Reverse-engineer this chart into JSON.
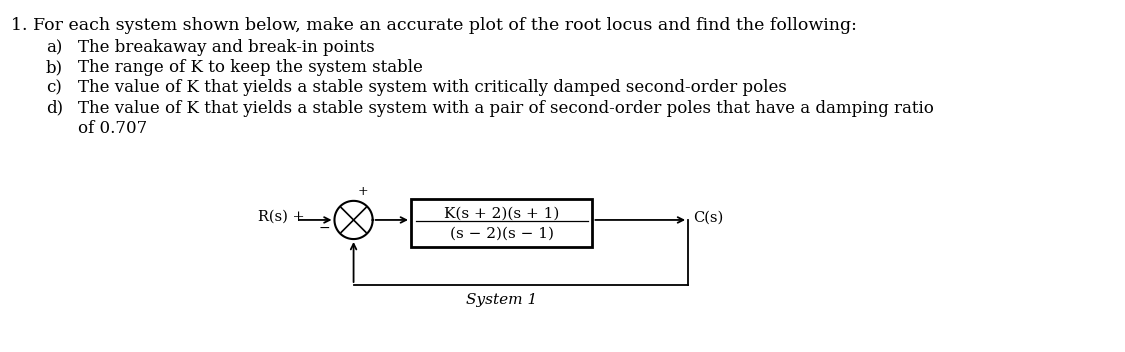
{
  "background_color": "#ffffff",
  "main_text": "1. For each system shown below, make an accurate plot of the root locus and find the following:",
  "item_a_label": "a)",
  "item_a_text": "The breakaway and break-in points",
  "item_b_label": "b)",
  "item_b_text": "The range of K to keep the system stable",
  "item_c_label": "c)",
  "item_c_text": "The value of K that yields a stable system with critically damped second-order poles",
  "item_d_label": "d)",
  "item_d_text_line1": "The value of K that yields a stable system with a pair of second-order poles that have a damping ratio",
  "item_d_text_line2": "of 0.707",
  "block_numerator": "K(s + 2)(s + 1)",
  "block_denominator": "(s − 2)(s − 1)",
  "label_input": "R(s) +",
  "label_plus": "+",
  "label_minus": "−",
  "label_output": "C(s)",
  "label_system": "System 1",
  "font_size_main": 12.5,
  "font_size_items": 12.0,
  "font_size_block": 11.0,
  "font_size_labels": 10.5,
  "text_color": "#000000"
}
